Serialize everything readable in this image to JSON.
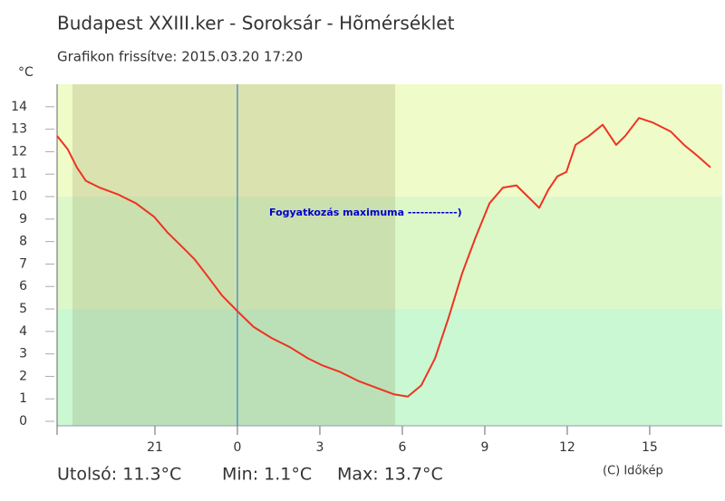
{
  "chart_data": {
    "type": "line",
    "title": "Budapest XXIII.ker - Soroksár - Hõmérséklet",
    "subtitle": "Grafikon frissítve: 2015.03.20 17:20",
    "y_label": "°C",
    "annotation": "Fogyatkozás maximuma ------------)",
    "footer": [
      "Utolsó: 11.3°C",
      "Min: 1.1°C",
      "Max: 13.7°C"
    ],
    "credit": "(C) Időkép",
    "x": [
      -6.56,
      -6.17,
      -5.84,
      -5.51,
      -5.01,
      -4.35,
      -3.69,
      -3.03,
      -2.54,
      -2.04,
      -1.55,
      -1.05,
      -0.56,
      0,
      0.59,
      1.25,
      1.91,
      2.57,
      3.07,
      3.73,
      4.39,
      5.04,
      5.7,
      6.2,
      6.69,
      7.19,
      7.68,
      8.18,
      8.67,
      9.17,
      9.66,
      10.15,
      10.65,
      10.98,
      11.31,
      11.64,
      11.97,
      12.3,
      12.79,
      13.29,
      13.78,
      14.11,
      14.61,
      15.1,
      15.76,
      16.25,
      16.75,
      17.21
    ],
    "series": [
      {
        "name": "Hõmérséklet",
        "color": "#ee3322",
        "values": [
          12.7,
          12.1,
          11.3,
          10.7,
          10.4,
          10.1,
          9.7,
          9.1,
          8.4,
          7.8,
          7.2,
          6.4,
          5.6,
          4.9,
          4.2,
          3.7,
          3.3,
          2.8,
          2.5,
          2.2,
          1.8,
          1.5,
          1.2,
          1.1,
          1.6,
          2.8,
          4.6,
          6.6,
          8.2,
          9.7,
          10.4,
          10.5,
          9.9,
          9.5,
          10.3,
          10.9,
          11.1,
          12.3,
          12.7,
          13.2,
          12.3,
          12.7,
          13.5,
          13.3,
          12.9,
          12.3,
          11.8,
          11.3
        ]
      }
    ],
    "xlim": [
      -6.56,
      17.64
    ],
    "xticks": [
      {
        "value": -3,
        "label": "21"
      },
      0,
      3,
      6,
      9,
      12,
      15
    ],
    "ylim": [
      -0.2,
      15
    ],
    "yticks": [
      0,
      1,
      2,
      3,
      4,
      5,
      6,
      7,
      8,
      9,
      10,
      11,
      12,
      13,
      14
    ],
    "band_edges": [
      5,
      10
    ],
    "shaded_x": [
      -6,
      5.74
    ],
    "vline": 0
  }
}
